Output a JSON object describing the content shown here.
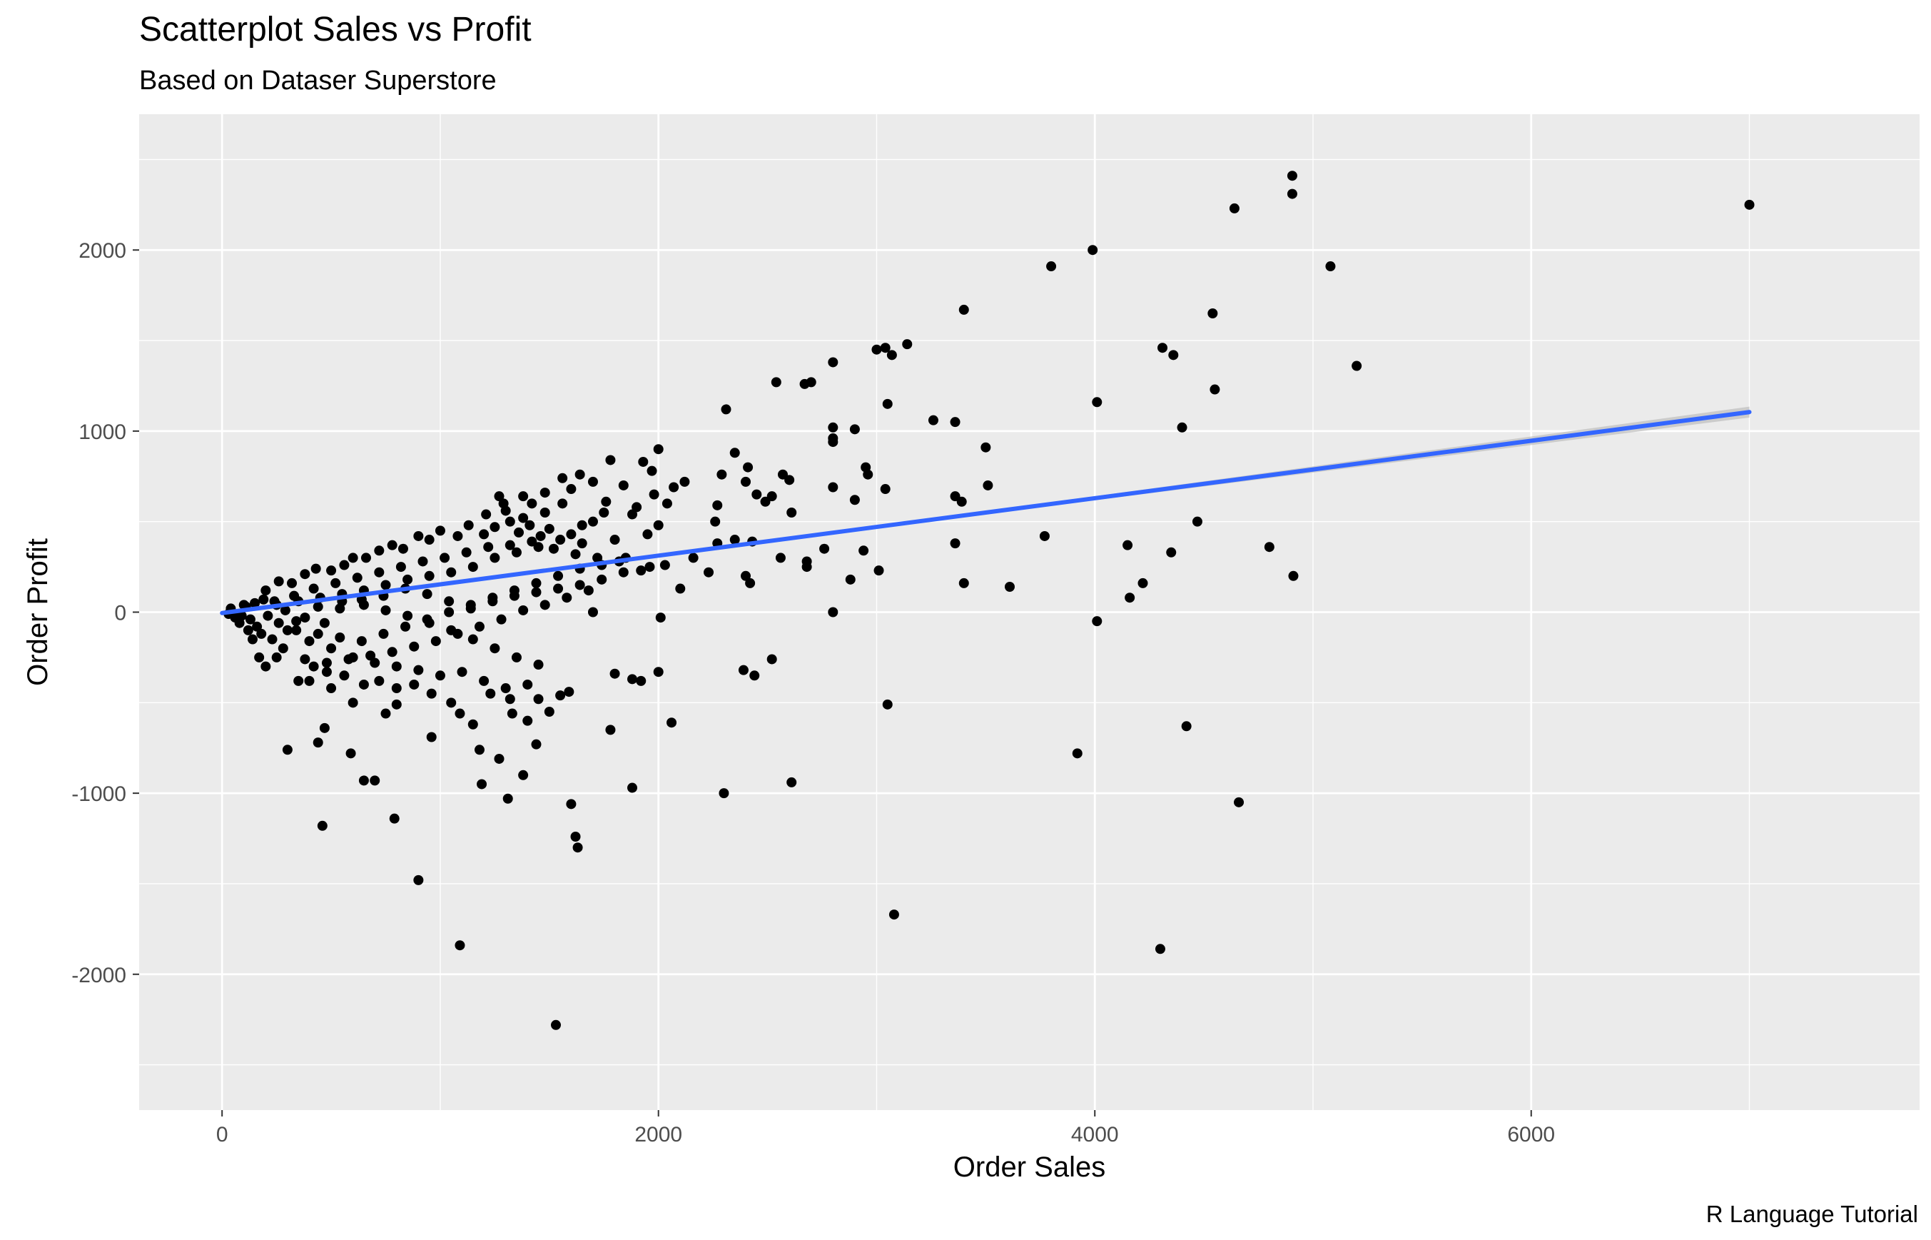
{
  "chart_data": {
    "type": "scatter",
    "title": "Scatterplot Sales vs Profit",
    "subtitle": "Based on Dataser Superstore",
    "caption": "R Language Tutorial",
    "xlabel": "Order Sales",
    "ylabel": "Order Profit",
    "xlim": [
      -380,
      7780
    ],
    "ylim": [
      -2750,
      2750
    ],
    "x_ticks": [
      0,
      2000,
      4000,
      6000
    ],
    "x_tick_labels": [
      "0",
      "2000",
      "4000",
      "6000"
    ],
    "y_ticks": [
      -2000,
      -1000,
      0,
      1000,
      2000
    ],
    "y_tick_labels": [
      "-2000",
      "-1000",
      "0",
      "1000",
      "2000"
    ],
    "grid": true,
    "panel_background": "#ebebeb",
    "grid_color": "#ffffff",
    "point_color": "#000000",
    "trend": {
      "type": "linear",
      "color": "#3366ff",
      "ribbon_color": "#bdbdbd",
      "x": [
        0,
        7000
      ],
      "y": [
        -5,
        1105
      ]
    },
    "points": [
      [
        4905,
        2410
      ],
      [
        4905,
        2310
      ],
      [
        4640,
        2230
      ],
      [
        7000,
        2250
      ],
      [
        3990,
        2000
      ],
      [
        3800,
        1910
      ],
      [
        5080,
        1910
      ],
      [
        3400,
        1670
      ],
      [
        4540,
        1650
      ],
      [
        4310,
        1460
      ],
      [
        4360,
        1420
      ],
      [
        5200,
        1360
      ],
      [
        4550,
        1230
      ],
      [
        4400,
        1020
      ],
      [
        4010,
        1160
      ],
      [
        3140,
        1480
      ],
      [
        3070,
        1420
      ],
      [
        3040,
        1460
      ],
      [
        3000,
        1450
      ],
      [
        3050,
        1150
      ],
      [
        3260,
        1060
      ],
      [
        3360,
        1050
      ],
      [
        3500,
        910
      ],
      [
        3510,
        700
      ],
      [
        3360,
        640
      ],
      [
        3390,
        610
      ],
      [
        3360,
        380
      ],
      [
        3400,
        160
      ],
      [
        3610,
        140
      ],
      [
        3770,
        420
      ],
      [
        4150,
        370
      ],
      [
        4350,
        330
      ],
      [
        4470,
        500
      ],
      [
        4800,
        360
      ],
      [
        4910,
        200
      ],
      [
        4160,
        80
      ],
      [
        4220,
        160
      ],
      [
        4010,
        -50
      ],
      [
        3920,
        -780
      ],
      [
        4420,
        -630
      ],
      [
        4660,
        -1050
      ],
      [
        4300,
        -1860
      ],
      [
        3050,
        -510
      ],
      [
        3080,
        -1670
      ],
      [
        2610,
        -940
      ],
      [
        2300,
        -1000
      ],
      [
        2440,
        -350
      ],
      [
        2390,
        -320
      ],
      [
        2520,
        -260
      ],
      [
        2800,
        0
      ],
      [
        2800,
        1380
      ],
      [
        2700,
        1270
      ],
      [
        2670,
        1260
      ],
      [
        2540,
        1270
      ],
      [
        2310,
        1120
      ],
      [
        2800,
        1020
      ],
      [
        2800,
        960
      ],
      [
        2900,
        1010
      ],
      [
        2800,
        940
      ],
      [
        2950,
        800
      ],
      [
        2960,
        760
      ],
      [
        3040,
        680
      ],
      [
        2900,
        620
      ],
      [
        2800,
        690
      ],
      [
        2760,
        350
      ],
      [
        2680,
        280
      ],
      [
        2680,
        250
      ],
      [
        2940,
        340
      ],
      [
        3010,
        230
      ],
      [
        2880,
        180
      ],
      [
        2600,
        730
      ],
      [
        2610,
        550
      ],
      [
        2570,
        760
      ],
      [
        2560,
        300
      ],
      [
        2520,
        640
      ],
      [
        2490,
        610
      ],
      [
        2450,
        650
      ],
      [
        2410,
        800
      ],
      [
        2400,
        720
      ],
      [
        2350,
        880
      ],
      [
        2290,
        760
      ],
      [
        2270,
        590
      ],
      [
        2270,
        380
      ],
      [
        2230,
        220
      ],
      [
        2350,
        400
      ],
      [
        2400,
        200
      ],
      [
        2420,
        160
      ],
      [
        2430,
        390
      ],
      [
        2260,
        500
      ],
      [
        2160,
        300
      ],
      [
        2100,
        130
      ],
      [
        2060,
        -610
      ],
      [
        2000,
        -330
      ],
      [
        2010,
        -30
      ],
      [
        1880,
        -970
      ],
      [
        1880,
        -370
      ],
      [
        1920,
        -380
      ],
      [
        1780,
        -650
      ],
      [
        1800,
        -340
      ],
      [
        1700,
        0
      ],
      [
        2000,
        900
      ],
      [
        1970,
        780
      ],
      [
        1930,
        830
      ],
      [
        1780,
        840
      ],
      [
        1840,
        700
      ],
      [
        1900,
        580
      ],
      [
        1980,
        650
      ],
      [
        2040,
        600
      ],
      [
        2070,
        690
      ],
      [
        2120,
        720
      ],
      [
        2000,
        480
      ],
      [
        1950,
        430
      ],
      [
        1880,
        540
      ],
      [
        1760,
        610
      ],
      [
        1800,
        400
      ],
      [
        1850,
        300
      ],
      [
        1920,
        230
      ],
      [
        1960,
        250
      ],
      [
        2030,
        260
      ],
      [
        1640,
        760
      ],
      [
        1560,
        740
      ],
      [
        1480,
        660
      ],
      [
        1380,
        640
      ],
      [
        1420,
        600
      ],
      [
        1270,
        640
      ],
      [
        1300,
        560
      ],
      [
        1550,
        -460
      ],
      [
        1590,
        -440
      ],
      [
        1600,
        -1060
      ],
      [
        1620,
        -1240
      ],
      [
        1630,
        -1300
      ],
      [
        1530,
        -2280
      ],
      [
        1440,
        -730
      ],
      [
        1380,
        -900
      ],
      [
        1330,
        -560
      ],
      [
        1270,
        -810
      ],
      [
        1180,
        -760
      ],
      [
        1190,
        -950
      ],
      [
        1310,
        -1030
      ],
      [
        1090,
        -560
      ],
      [
        960,
        -690
      ],
      [
        900,
        -1480
      ],
      [
        1090,
        -1840
      ],
      [
        790,
        -1140
      ],
      [
        650,
        -930
      ],
      [
        700,
        -930
      ],
      [
        460,
        -1180
      ],
      [
        440,
        -720
      ],
      [
        470,
        -640
      ],
      [
        300,
        -760
      ],
      [
        590,
        -780
      ],
      [
        750,
        -560
      ],
      [
        800,
        -510
      ],
      [
        600,
        -500
      ],
      [
        500,
        -420
      ],
      [
        420,
        -300
      ],
      [
        350,
        -380
      ],
      [
        250,
        -250
      ],
      [
        200,
        -300
      ],
      [
        170,
        -250
      ],
      [
        140,
        -150
      ],
      [
        120,
        -100
      ],
      [
        150,
        50
      ],
      [
        100,
        40
      ],
      [
        80,
        -60
      ],
      [
        60,
        -30
      ],
      [
        40,
        20
      ],
      [
        30,
        -10
      ],
      [
        200,
        120
      ],
      [
        260,
        170
      ],
      [
        320,
        160
      ],
      [
        380,
        210
      ],
      [
        430,
        240
      ],
      [
        500,
        230
      ],
      [
        560,
        260
      ],
      [
        600,
        300
      ],
      [
        660,
        300
      ],
      [
        720,
        340
      ],
      [
        780,
        370
      ],
      [
        830,
        350
      ],
      [
        900,
        420
      ],
      [
        950,
        400
      ],
      [
        1000,
        450
      ],
      [
        1080,
        420
      ],
      [
        1130,
        480
      ],
      [
        1200,
        430
      ],
      [
        1250,
        470
      ],
      [
        1320,
        500
      ],
      [
        1360,
        440
      ],
      [
        1410,
        480
      ],
      [
        1460,
        420
      ],
      [
        1500,
        460
      ],
      [
        1550,
        400
      ],
      [
        1600,
        430
      ],
      [
        1650,
        380
      ],
      [
        1450,
        360
      ],
      [
        1350,
        330
      ],
      [
        1250,
        300
      ],
      [
        1150,
        250
      ],
      [
        1050,
        220
      ],
      [
        950,
        200
      ],
      [
        850,
        180
      ],
      [
        750,
        150
      ],
      [
        650,
        120
      ],
      [
        550,
        100
      ],
      [
        450,
        80
      ],
      [
        350,
        60
      ],
      [
        250,
        40
      ],
      [
        300,
        -100
      ],
      [
        400,
        -160
      ],
      [
        500,
        -200
      ],
      [
        600,
        -250
      ],
      [
        700,
        -280
      ],
      [
        800,
        -300
      ],
      [
        900,
        -320
      ],
      [
        1000,
        -350
      ],
      [
        1100,
        -330
      ],
      [
        1200,
        -380
      ],
      [
        1300,
        -420
      ],
      [
        1400,
        -400
      ],
      [
        1450,
        -290
      ],
      [
        1350,
        -250
      ],
      [
        1250,
        -200
      ],
      [
        1150,
        -150
      ],
      [
        1050,
        -100
      ],
      [
        950,
        -60
      ],
      [
        850,
        -20
      ],
      [
        750,
        10
      ],
      [
        650,
        40
      ],
      [
        550,
        60
      ],
      [
        470,
        -60
      ],
      [
        380,
        -30
      ],
      [
        290,
        10
      ],
      [
        210,
        -20
      ],
      [
        330,
        90
      ],
      [
        420,
        130
      ],
      [
        520,
        160
      ],
      [
        620,
        190
      ],
      [
        720,
        220
      ],
      [
        820,
        250
      ],
      [
        920,
        280
      ],
      [
        1020,
        300
      ],
      [
        1120,
        330
      ],
      [
        1220,
        360
      ],
      [
        1320,
        370
      ],
      [
        1420,
        390
      ],
      [
        1520,
        350
      ],
      [
        1620,
        320
      ],
      [
        1720,
        300
      ],
      [
        1820,
        280
      ],
      [
        1680,
        120
      ],
      [
        1580,
        80
      ],
      [
        1480,
        40
      ],
      [
        1380,
        10
      ],
      [
        1280,
        -40
      ],
      [
        1180,
        -80
      ],
      [
        1080,
        -120
      ],
      [
        980,
        -160
      ],
      [
        880,
        -190
      ],
      [
        780,
        -220
      ],
      [
        680,
        -240
      ],
      [
        580,
        -260
      ],
      [
        480,
        -280
      ],
      [
        380,
        -260
      ],
      [
        280,
        -200
      ],
      [
        230,
        -150
      ],
      [
        180,
        -120
      ],
      [
        260,
        -60
      ],
      [
        340,
        -100
      ],
      [
        440,
        -120
      ],
      [
        540,
        -140
      ],
      [
        640,
        -160
      ],
      [
        740,
        -120
      ],
      [
        840,
        -80
      ],
      [
        940,
        -40
      ],
      [
        1040,
        0
      ],
      [
        1140,
        40
      ],
      [
        1240,
        80
      ],
      [
        1340,
        120
      ],
      [
        1440,
        160
      ],
      [
        1540,
        200
      ],
      [
        1640,
        240
      ],
      [
        1740,
        260
      ],
      [
        1840,
        220
      ],
      [
        1740,
        180
      ],
      [
        1640,
        150
      ],
      [
        1540,
        130
      ],
      [
        1440,
        110
      ],
      [
        1340,
        90
      ],
      [
        1240,
        60
      ],
      [
        1140,
        20
      ],
      [
        1040,
        60
      ],
      [
        940,
        100
      ],
      [
        840,
        130
      ],
      [
        740,
        90
      ],
      [
        640,
        70
      ],
      [
        540,
        20
      ],
      [
        440,
        30
      ],
      [
        340,
        -50
      ],
      [
        240,
        60
      ],
      [
        160,
        -80
      ],
      [
        190,
        70
      ],
      [
        110,
        30
      ],
      [
        130,
        -40
      ],
      [
        90,
        -20
      ],
      [
        1700,
        500
      ],
      [
        1750,
        550
      ],
      [
        1650,
        480
      ],
      [
        1560,
        600
      ],
      [
        1480,
        550
      ],
      [
        1380,
        520
      ],
      [
        1290,
        600
      ],
      [
        1210,
        540
      ],
      [
        1600,
        680
      ],
      [
        1700,
        720
      ],
      [
        1400,
        -600
      ],
      [
        1500,
        -550
      ],
      [
        1450,
        -480
      ],
      [
        1320,
        -480
      ],
      [
        1230,
        -450
      ],
      [
        1150,
        -620
      ],
      [
        1050,
        -500
      ],
      [
        960,
        -450
      ],
      [
        880,
        -400
      ],
      [
        800,
        -420
      ],
      [
        720,
        -380
      ],
      [
        650,
        -400
      ],
      [
        560,
        -350
      ],
      [
        480,
        -330
      ],
      [
        400,
        -380
      ]
    ]
  }
}
